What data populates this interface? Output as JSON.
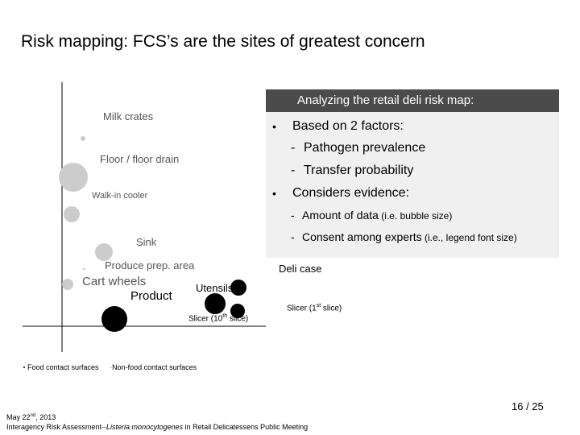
{
  "title": "Risk mapping: FCS’s are the sites of greatest concern",
  "colors": {
    "panel_header_bg": "#4b4b4b",
    "panel_bg": "#f0f0f0",
    "fcs_bubble": "#000000",
    "nfcs_bubble": "#cccccc"
  },
  "map": {
    "labels": {
      "milk_crates": "Milk crates",
      "floor_drain": "Floor / floor drain",
      "walk_in_cooler": "Walk-in cooler",
      "sink": "Sink",
      "produce_prep": "Produce prep. area",
      "cart_wheels": "Cart wheels",
      "product": "Product",
      "utensils": "Utensils",
      "slicer_10_pre": "Slicer (10",
      "slicer_10_sup": "th",
      "slicer_10_post": " slice)",
      "deli_case": "Deli case",
      "slicer_1_pre": "Slicer (1",
      "slicer_1_sup": "st",
      "slicer_1_post": " slice)"
    }
  },
  "legend": {
    "fcs": "Food contact surfaces",
    "nfcs": "Non-food contact surfaces"
  },
  "panel": {
    "header": "Analyzing the retail deli risk map:",
    "bullet": "•",
    "dash": "-",
    "factors": "Based on 2 factors:",
    "pathogen": "Pathogen prevalence",
    "transfer": "Transfer probability",
    "evidence": "Considers evidence:",
    "amount": "Amount of data",
    "amount_note": " (i.e. bubble size)",
    "consent": "Consent among experts",
    "consent_note": " (i.e., legend font size)"
  },
  "footer": {
    "date_pre": "May 22",
    "date_sup": "nd",
    "date_post": ", 2013",
    "event_pre": "Interagency Risk Assessment--",
    "event_italic": "Listeria monocytogenes",
    "event_post": " in Retail Delicatessens Public Meeting",
    "page": "16 / 25"
  }
}
